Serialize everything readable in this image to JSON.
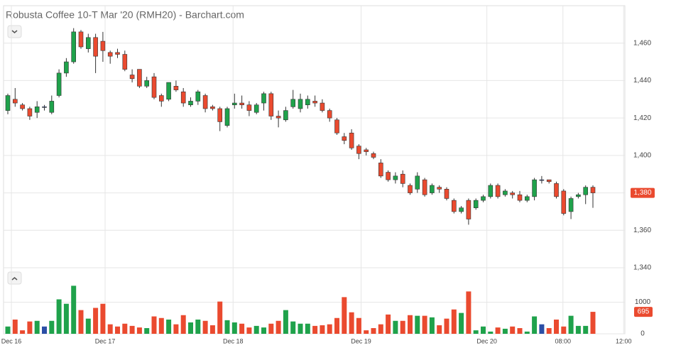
{
  "chart_data": {
    "type": "candlestick",
    "title": "Robusta Coffee 10-T Mar '20 (RMH20) - Barchart.com",
    "categories": [
      null,
      null,
      null,
      null,
      null,
      null,
      null,
      null,
      null,
      null,
      null,
      null,
      null,
      null,
      null,
      null,
      null,
      null,
      null,
      null,
      null,
      null,
      null,
      null,
      null,
      null,
      null,
      null,
      null,
      null,
      null,
      null,
      null,
      null,
      null,
      null,
      null,
      null,
      null,
      null,
      null,
      null,
      null,
      null,
      null,
      null,
      null,
      null,
      null,
      null,
      null,
      null,
      null,
      null,
      null,
      null,
      null,
      null,
      null,
      null,
      null,
      null,
      null,
      null,
      null,
      null,
      null,
      null,
      null,
      null,
      null,
      null,
      null,
      null,
      null,
      null,
      null,
      null,
      null,
      null,
      null
    ],
    "open": [
      1424,
      1430,
      1427,
      1425,
      1423,
      1426,
      1423,
      1432,
      1444,
      1450,
      1466,
      1457,
      1463,
      1461,
      1455,
      1455,
      1454,
      1443,
      1446,
      1437,
      1442,
      1432,
      1430,
      1437,
      1434,
      1427,
      1429,
      1432,
      1426,
      1425,
      1416,
      1427,
      1428,
      1427,
      1423,
      1428,
      1433,
      1421,
      1419,
      1426,
      1425,
      1427,
      1429,
      1428,
      1424,
      1419,
      1410,
      1412,
      1405,
      1403,
      1401,
      1396,
      1391,
      1387,
      1390,
      1384,
      1382,
      1387,
      1380,
      1383,
      1382,
      1376,
      1370,
      1376,
      1372,
      1376,
      1378,
      1384,
      1379,
      1380,
      1379,
      1376,
      1378,
      1387,
      1387,
      1385,
      1381,
      1370,
      1378,
      1379,
      1383
    ],
    "high": [
      1433,
      1436,
      1428,
      1426,
      1429,
      1427,
      1432,
      1446,
      1452,
      1468,
      1467,
      1465,
      1465,
      1466,
      1456,
      1457,
      1456,
      1446,
      1446,
      1442,
      1444,
      1433,
      1439,
      1440,
      1436,
      1431,
      1435,
      1433,
      1427,
      1426,
      1426,
      1433,
      1432,
      1429,
      1428,
      1434,
      1434,
      1424,
      1426,
      1435,
      1433,
      1432,
      1432,
      1430,
      1425,
      1420,
      1412,
      1414,
      1406,
      1404,
      1402,
      1398,
      1392,
      1391,
      1392,
      1385,
      1391,
      1388,
      1385,
      1384,
      1383,
      1377,
      1373,
      1377,
      1377,
      1379,
      1385,
      1385,
      1382,
      1381,
      1381,
      1379,
      1388,
      1389,
      1387,
      1386,
      1382,
      1378,
      1380,
      1384,
      1384
    ],
    "low": [
      1422,
      1426,
      1424,
      1419,
      1420,
      1424,
      1422,
      1431,
      1442,
      1449,
      1457,
      1455,
      1444,
      1450,
      1449,
      1452,
      1445,
      1439,
      1436,
      1436,
      1430,
      1426,
      1429,
      1434,
      1426,
      1426,
      1427,
      1423,
      1424,
      1413,
      1415,
      1425,
      1425,
      1421,
      1422,
      1424,
      1419,
      1415,
      1418,
      1425,
      1423,
      1425,
      1426,
      1423,
      1418,
      1411,
      1406,
      1403,
      1398,
      1400,
      1398,
      1388,
      1386,
      1385,
      1383,
      1379,
      1380,
      1378,
      1379,
      1380,
      1376,
      1369,
      1369,
      1363,
      1371,
      1375,
      1377,
      1377,
      1378,
      1377,
      1375,
      1375,
      1376,
      1385,
      1385,
      1377,
      1368,
      1366,
      1377,
      1374,
      1372
    ],
    "close": [
      1432,
      1428,
      1425,
      1421,
      1426,
      1426,
      1429,
      1444,
      1450,
      1466,
      1458,
      1463,
      1453,
      1456,
      1453,
      1454,
      1446,
      1441,
      1437,
      1440,
      1431,
      1429,
      1439,
      1435,
      1428,
      1429,
      1434,
      1425,
      1425,
      1418,
      1425,
      1428,
      1427,
      1424,
      1427,
      1433,
      1421,
      1420,
      1424,
      1430,
      1430,
      1430,
      1428,
      1424,
      1420,
      1412,
      1408,
      1404,
      1401,
      1402,
      1399,
      1389,
      1387,
      1389,
      1385,
      1380,
      1389,
      1379,
      1384,
      1382,
      1377,
      1370,
      1372,
      1366,
      1376,
      1378,
      1384,
      1378,
      1381,
      1379,
      1376,
      1378,
      1387,
      1387,
      1386,
      1378,
      1369,
      1377,
      1379,
      1383,
      1380
    ],
    "last_label": "1,380",
    "up_color": "#1fa24b",
    "down_color": "#ea4a2f",
    "flat_color": "#2b4ea6",
    "ylim": [
      1340,
      1480
    ],
    "yticks": [
      {
        "value": 1340,
        "label": "1,340"
      },
      {
        "value": 1360,
        "label": "1,360"
      },
      {
        "value": 1380,
        "label": "1,380"
      },
      {
        "value": 1400,
        "label": "1,400"
      },
      {
        "value": 1420,
        "label": "1,420"
      },
      {
        "value": 1440,
        "label": "1,440"
      },
      {
        "value": 1460,
        "label": "1,460"
      }
    ],
    "xticks": [
      {
        "value": 0.49,
        "label": "Dec 16"
      },
      {
        "value": 13.3,
        "label": "Dec 17"
      },
      {
        "value": 30.8,
        "label": "Dec 18"
      },
      {
        "value": 48.3,
        "label": "Dec 19"
      },
      {
        "value": 65.5,
        "label": "Dec 20"
      },
      {
        "value": 75.9,
        "label": "08:00"
      },
      {
        "value": 84.2,
        "label": "12:00"
      }
    ],
    "grid": true,
    "volume": {
      "values": [
        230,
        450,
        110,
        390,
        410,
        230,
        410,
        1090,
        950,
        1520,
        750,
        480,
        820,
        950,
        300,
        230,
        320,
        250,
        200,
        180,
        550,
        500,
        450,
        300,
        590,
        360,
        450,
        410,
        270,
        1020,
        430,
        360,
        320,
        200,
        250,
        200,
        320,
        410,
        750,
        390,
        320,
        320,
        250,
        270,
        300,
        500,
        1160,
        680,
        500,
        110,
        180,
        300,
        610,
        410,
        410,
        590,
        570,
        570,
        520,
        270,
        480,
        770,
        660,
        1340,
        110,
        230,
        70,
        200,
        160,
        230,
        180,
        70,
        550,
        300,
        180,
        450,
        230,
        570,
        250,
        250,
        695
      ],
      "ylim": [
        0,
        2090
      ],
      "yticks": [
        0,
        1000
      ]
    }
  }
}
